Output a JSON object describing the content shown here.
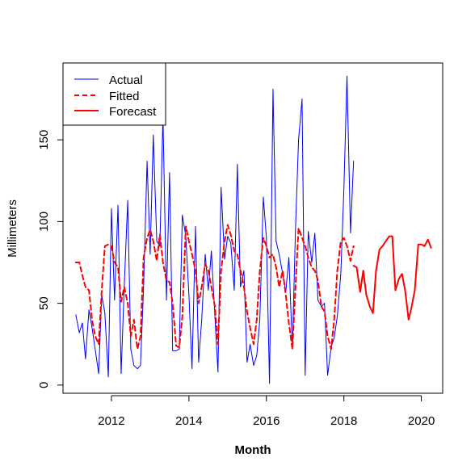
{
  "chart_data": {
    "type": "line",
    "xlabel": "Month",
    "ylabel": "Millimeters",
    "xlim": [
      2010.75,
      2020.55
    ],
    "ylim": [
      -5,
      197
    ],
    "x_ticks": [
      2012,
      2014,
      2016,
      2018,
      2020
    ],
    "y_ticks": [
      0,
      50,
      100,
      150
    ],
    "grid": false,
    "legend_position": "top-left",
    "legend": [
      {
        "label": "Actual",
        "color": "#0000ff",
        "style": "solid"
      },
      {
        "label": "Fitted",
        "color": "#ff0000",
        "style": "dashed"
      },
      {
        "label": "Forecast",
        "color": "#ff0000",
        "style": "solid"
      }
    ],
    "series": [
      {
        "name": "Actual",
        "color": "#0000ff",
        "style": "solid",
        "points": [
          [
            2011.08,
            43
          ],
          [
            2011.17,
            32
          ],
          [
            2011.25,
            38
          ],
          [
            2011.33,
            16
          ],
          [
            2011.42,
            46
          ],
          [
            2011.5,
            35
          ],
          [
            2011.58,
            22
          ],
          [
            2011.67,
            7
          ],
          [
            2011.75,
            55
          ],
          [
            2011.83,
            44
          ],
          [
            2011.92,
            5
          ],
          [
            2012.0,
            108
          ],
          [
            2012.08,
            52
          ],
          [
            2012.17,
            110
          ],
          [
            2012.25,
            7
          ],
          [
            2012.33,
            60
          ],
          [
            2012.42,
            113
          ],
          [
            2012.5,
            22
          ],
          [
            2012.58,
            12
          ],
          [
            2012.67,
            10
          ],
          [
            2012.75,
            12
          ],
          [
            2012.83,
            60
          ],
          [
            2012.92,
            137
          ],
          [
            2013.0,
            80
          ],
          [
            2013.08,
            153
          ],
          [
            2013.17,
            88
          ],
          [
            2013.25,
            85
          ],
          [
            2013.33,
            165
          ],
          [
            2013.42,
            52
          ],
          [
            2013.5,
            130
          ],
          [
            2013.58,
            21
          ],
          [
            2013.67,
            21
          ],
          [
            2013.75,
            22
          ],
          [
            2013.83,
            104
          ],
          [
            2013.92,
            91
          ],
          [
            2014.0,
            55
          ],
          [
            2014.08,
            10
          ],
          [
            2014.17,
            97
          ],
          [
            2014.25,
            14
          ],
          [
            2014.33,
            40
          ],
          [
            2014.42,
            80
          ],
          [
            2014.5,
            58
          ],
          [
            2014.58,
            82
          ],
          [
            2014.67,
            42
          ],
          [
            2014.75,
            8
          ],
          [
            2014.83,
            121
          ],
          [
            2014.92,
            77
          ],
          [
            2015.0,
            91
          ],
          [
            2015.08,
            87
          ],
          [
            2015.17,
            58
          ],
          [
            2015.25,
            135
          ],
          [
            2015.33,
            60
          ],
          [
            2015.42,
            70
          ],
          [
            2015.5,
            14
          ],
          [
            2015.58,
            25
          ],
          [
            2015.67,
            12
          ],
          [
            2015.75,
            18
          ],
          [
            2015.83,
            40
          ],
          [
            2015.92,
            115
          ],
          [
            2016.0,
            90
          ],
          [
            2016.08,
            1
          ],
          [
            2016.17,
            181
          ],
          [
            2016.25,
            88
          ],
          [
            2016.33,
            80
          ],
          [
            2016.42,
            68
          ],
          [
            2016.5,
            57
          ],
          [
            2016.58,
            78
          ],
          [
            2016.67,
            22
          ],
          [
            2016.75,
            95
          ],
          [
            2016.83,
            150
          ],
          [
            2016.92,
            175
          ],
          [
            2017.0,
            6
          ],
          [
            2017.08,
            94
          ],
          [
            2017.17,
            75
          ],
          [
            2017.25,
            93
          ],
          [
            2017.33,
            52
          ],
          [
            2017.42,
            48
          ],
          [
            2017.5,
            50
          ],
          [
            2017.58,
            6
          ],
          [
            2017.67,
            23
          ],
          [
            2017.75,
            29
          ],
          [
            2017.83,
            42
          ],
          [
            2017.92,
            68
          ],
          [
            2018.0,
            120
          ],
          [
            2018.08,
            189
          ],
          [
            2018.17,
            93
          ],
          [
            2018.25,
            137
          ]
        ]
      },
      {
        "name": "Fitted",
        "color": "#ff0000",
        "style": "dashed",
        "points": [
          [
            2011.08,
            75
          ],
          [
            2011.17,
            75
          ],
          [
            2011.25,
            67
          ],
          [
            2011.33,
            60
          ],
          [
            2011.42,
            58
          ],
          [
            2011.5,
            40
          ],
          [
            2011.58,
            30
          ],
          [
            2011.67,
            25
          ],
          [
            2011.75,
            58
          ],
          [
            2011.83,
            85
          ],
          [
            2011.92,
            86
          ],
          [
            2012.0,
            85
          ],
          [
            2012.08,
            75
          ],
          [
            2012.17,
            72
          ],
          [
            2012.25,
            51
          ],
          [
            2012.33,
            60
          ],
          [
            2012.42,
            50
          ],
          [
            2012.5,
            30
          ],
          [
            2012.58,
            40
          ],
          [
            2012.67,
            22
          ],
          [
            2012.75,
            30
          ],
          [
            2012.83,
            78
          ],
          [
            2012.92,
            90
          ],
          [
            2013.0,
            95
          ],
          [
            2013.08,
            88
          ],
          [
            2013.17,
            76
          ],
          [
            2013.25,
            92
          ],
          [
            2013.33,
            75
          ],
          [
            2013.42,
            64
          ],
          [
            2013.5,
            63
          ],
          [
            2013.58,
            50
          ],
          [
            2013.67,
            24
          ],
          [
            2013.75,
            23
          ],
          [
            2013.83,
            42
          ],
          [
            2013.92,
            97
          ],
          [
            2014.0,
            88
          ],
          [
            2014.08,
            80
          ],
          [
            2014.17,
            70
          ],
          [
            2014.25,
            50
          ],
          [
            2014.33,
            60
          ],
          [
            2014.42,
            74
          ],
          [
            2014.5,
            70
          ],
          [
            2014.58,
            60
          ],
          [
            2014.67,
            48
          ],
          [
            2014.75,
            25
          ],
          [
            2014.83,
            70
          ],
          [
            2014.92,
            88
          ],
          [
            2015.0,
            98
          ],
          [
            2015.08,
            92
          ],
          [
            2015.17,
            82
          ],
          [
            2015.25,
            80
          ],
          [
            2015.33,
            70
          ],
          [
            2015.42,
            60
          ],
          [
            2015.5,
            45
          ],
          [
            2015.58,
            35
          ],
          [
            2015.67,
            25
          ],
          [
            2015.75,
            40
          ],
          [
            2015.83,
            70
          ],
          [
            2015.92,
            90
          ],
          [
            2016.0,
            85
          ],
          [
            2016.08,
            78
          ],
          [
            2016.17,
            80
          ],
          [
            2016.25,
            72
          ],
          [
            2016.33,
            60
          ],
          [
            2016.42,
            70
          ],
          [
            2016.5,
            55
          ],
          [
            2016.58,
            38
          ],
          [
            2016.67,
            22
          ],
          [
            2016.75,
            60
          ],
          [
            2016.83,
            96
          ],
          [
            2016.92,
            90
          ],
          [
            2017.0,
            85
          ],
          [
            2017.08,
            78
          ],
          [
            2017.17,
            72
          ],
          [
            2017.25,
            70
          ],
          [
            2017.33,
            64
          ],
          [
            2017.42,
            48
          ],
          [
            2017.5,
            45
          ],
          [
            2017.58,
            30
          ],
          [
            2017.67,
            22
          ],
          [
            2017.75,
            40
          ],
          [
            2017.83,
            70
          ],
          [
            2017.92,
            88
          ],
          [
            2018.0,
            90
          ],
          [
            2018.08,
            85
          ],
          [
            2018.17,
            76
          ],
          [
            2018.25,
            85
          ]
        ]
      },
      {
        "name": "Forecast",
        "color": "#ff0000",
        "style": "solid",
        "points": [
          [
            2018.25,
            73
          ],
          [
            2018.33,
            72
          ],
          [
            2018.42,
            57
          ],
          [
            2018.5,
            70
          ],
          [
            2018.58,
            55
          ],
          [
            2018.67,
            48
          ],
          [
            2018.75,
            44
          ],
          [
            2018.83,
            70
          ],
          [
            2018.92,
            83
          ],
          [
            2019.0,
            85
          ],
          [
            2019.08,
            88
          ],
          [
            2019.17,
            91
          ],
          [
            2019.25,
            91
          ],
          [
            2019.33,
            58
          ],
          [
            2019.42,
            65
          ],
          [
            2019.5,
            68
          ],
          [
            2019.58,
            58
          ],
          [
            2019.67,
            40
          ],
          [
            2019.75,
            48
          ],
          [
            2019.83,
            58
          ],
          [
            2019.92,
            86
          ],
          [
            2020.0,
            86
          ],
          [
            2020.08,
            85
          ],
          [
            2020.17,
            89
          ],
          [
            2020.25,
            84
          ]
        ]
      }
    ]
  }
}
